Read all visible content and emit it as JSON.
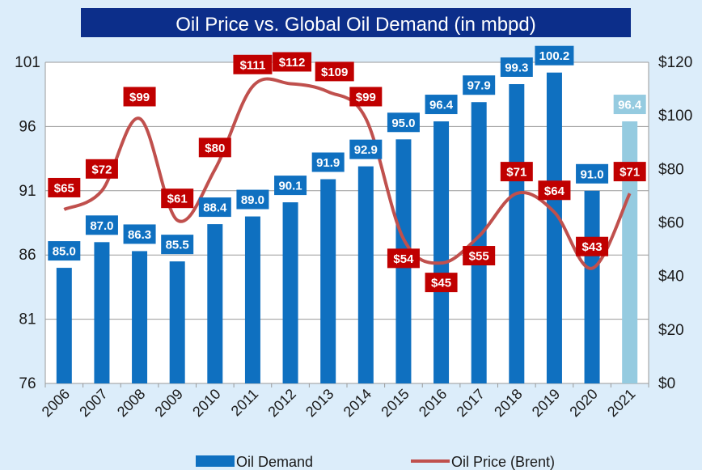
{
  "chart_data": {
    "type": "bar+line",
    "title": "Oil Price vs. Global Oil Demand (in mbpd)",
    "categories": [
      "2006",
      "2007",
      "2008",
      "2009",
      "2010",
      "2011",
      "2012",
      "2013",
      "2014",
      "2015",
      "2016",
      "2017",
      "2018",
      "2019",
      "2020",
      "2021"
    ],
    "series": [
      {
        "name": "Oil Demand",
        "type": "bar",
        "axis": "left",
        "values": [
          85.0,
          87.0,
          86.3,
          85.5,
          88.4,
          89.0,
          90.1,
          91.9,
          92.9,
          95.0,
          96.4,
          97.9,
          99.3,
          100.2,
          91.0,
          96.4
        ],
        "labels": [
          "85.0",
          "87.0",
          "86.3",
          "85.5",
          "88.4",
          "89.0",
          "90.1",
          "91.9",
          "92.9",
          "95.0",
          "96.4",
          "97.9",
          "99.3",
          "100.2",
          "91.0",
          "96.4"
        ],
        "color": "#0f70c0",
        "projected_color": "#95cbe0",
        "projected_index": 15
      },
      {
        "name": "Oil Price (Brent)",
        "type": "line",
        "axis": "right",
        "values": [
          65,
          72,
          99,
          61,
          80,
          111,
          112,
          109,
          99,
          54,
          45,
          55,
          71,
          64,
          43,
          71
        ],
        "labels": [
          "$65",
          "$72",
          "$99",
          "$61",
          "$80",
          "$111",
          "$112",
          "$109",
          "$99",
          "$54",
          "$45",
          "$55",
          "$71",
          "$64",
          "$43",
          "$71"
        ],
        "color": "#c0504d",
        "label_color": "#c00000"
      }
    ],
    "y_left": {
      "min": 76,
      "max": 101,
      "ticks": [
        76,
        81,
        86,
        91,
        96,
        101
      ]
    },
    "y_right": {
      "min": 0,
      "max": 120,
      "ticks": [
        0,
        20,
        40,
        60,
        80,
        100,
        120
      ],
      "tick_labels": [
        "$0",
        "$20",
        "$40",
        "$60",
        "$80",
        "$100",
        "$120"
      ]
    },
    "grid": "horizontal",
    "legend": {
      "position": "bottom",
      "items": [
        "Oil Demand",
        "Oil Price (Brent)"
      ]
    },
    "colors": {
      "title_bg": "#0c2e8a",
      "title_text": "#ffffff",
      "plot_bg": "#ffffff",
      "page_bg": "#dcedfa"
    }
  }
}
